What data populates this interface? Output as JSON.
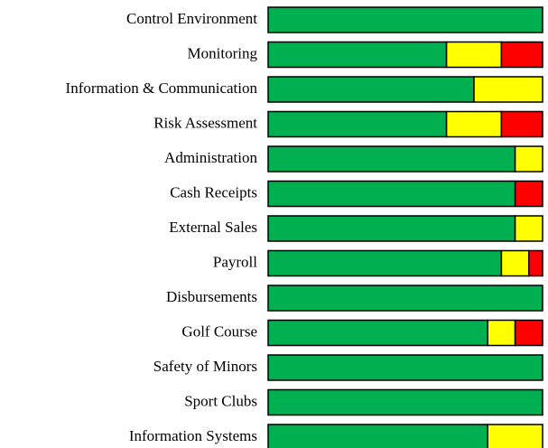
{
  "chart_data": {
    "type": "stacked-bar-horizontal",
    "categories": [
      "Control Environment",
      "Monitoring",
      "Information & Communication",
      "Risk Assessment",
      "Administration",
      "Cash Receipts",
      "External Sales",
      "Payroll",
      "Disbursements",
      "Golf Course",
      "Safety of Minors",
      "Sport Clubs",
      "Information Systems"
    ],
    "series": [
      {
        "color": "#00b050",
        "values": [
          100,
          65,
          75,
          65,
          90,
          90,
          90,
          85,
          100,
          80,
          100,
          100,
          80
        ]
      },
      {
        "color": "#ffff00",
        "values": [
          0,
          20,
          25,
          20,
          10,
          0,
          10,
          10,
          0,
          10,
          0,
          0,
          20
        ]
      },
      {
        "color": "#ff0000",
        "values": [
          0,
          15,
          0,
          15,
          0,
          10,
          0,
          5,
          0,
          10,
          0,
          0,
          0
        ]
      }
    ],
    "xlim": [
      0,
      100
    ]
  }
}
